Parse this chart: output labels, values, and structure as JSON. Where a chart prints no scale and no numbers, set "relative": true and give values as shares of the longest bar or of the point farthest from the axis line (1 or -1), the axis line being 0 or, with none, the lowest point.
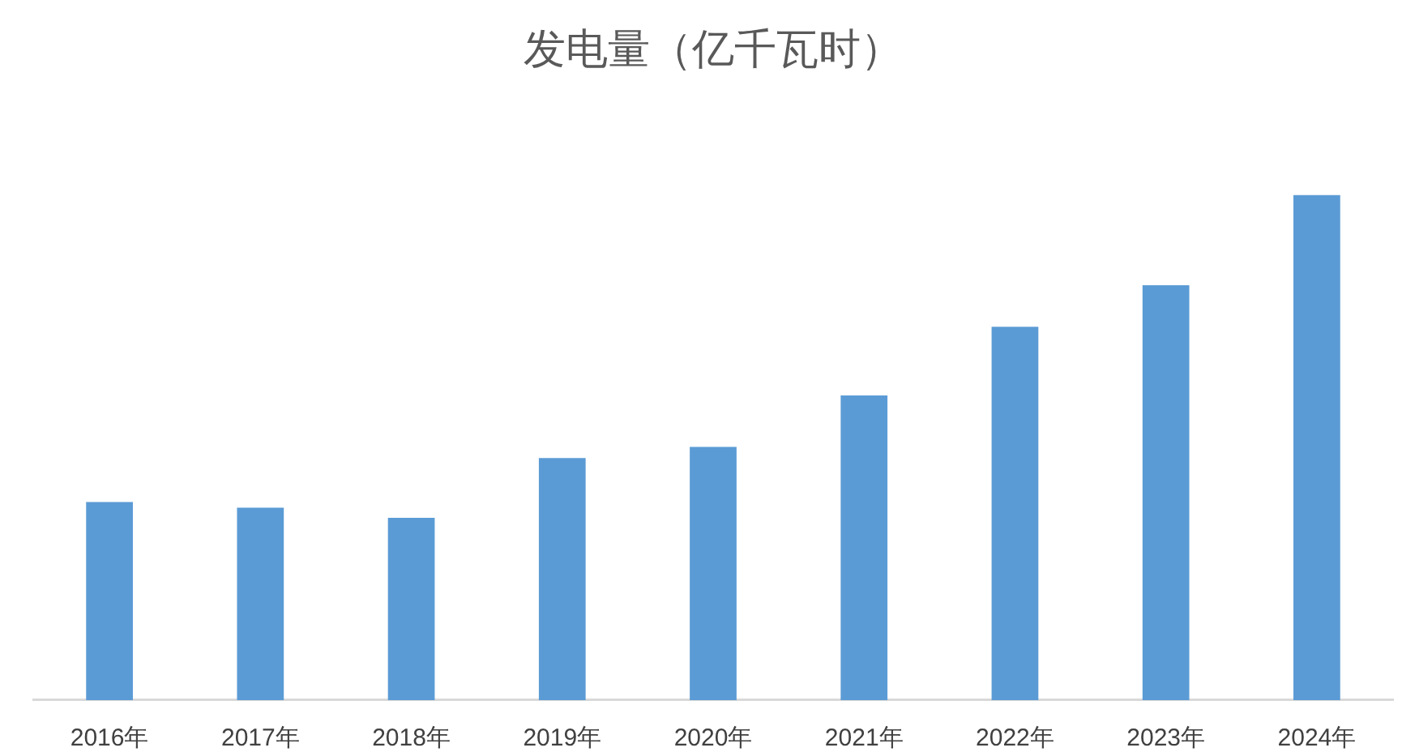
{
  "chart_data": {
    "type": "bar",
    "title": "发电量（亿千瓦时）",
    "categories": [
      "2016年",
      "2017年",
      "2018年",
      "2019年",
      "2020年",
      "2021年",
      "2022年",
      "2023年",
      "2024年"
    ],
    "values": [
      0.392,
      0.381,
      0.361,
      0.479,
      0.501,
      0.603,
      0.739,
      0.821,
      1
    ],
    "color": "#5b9bd5",
    "relative": true
  }
}
